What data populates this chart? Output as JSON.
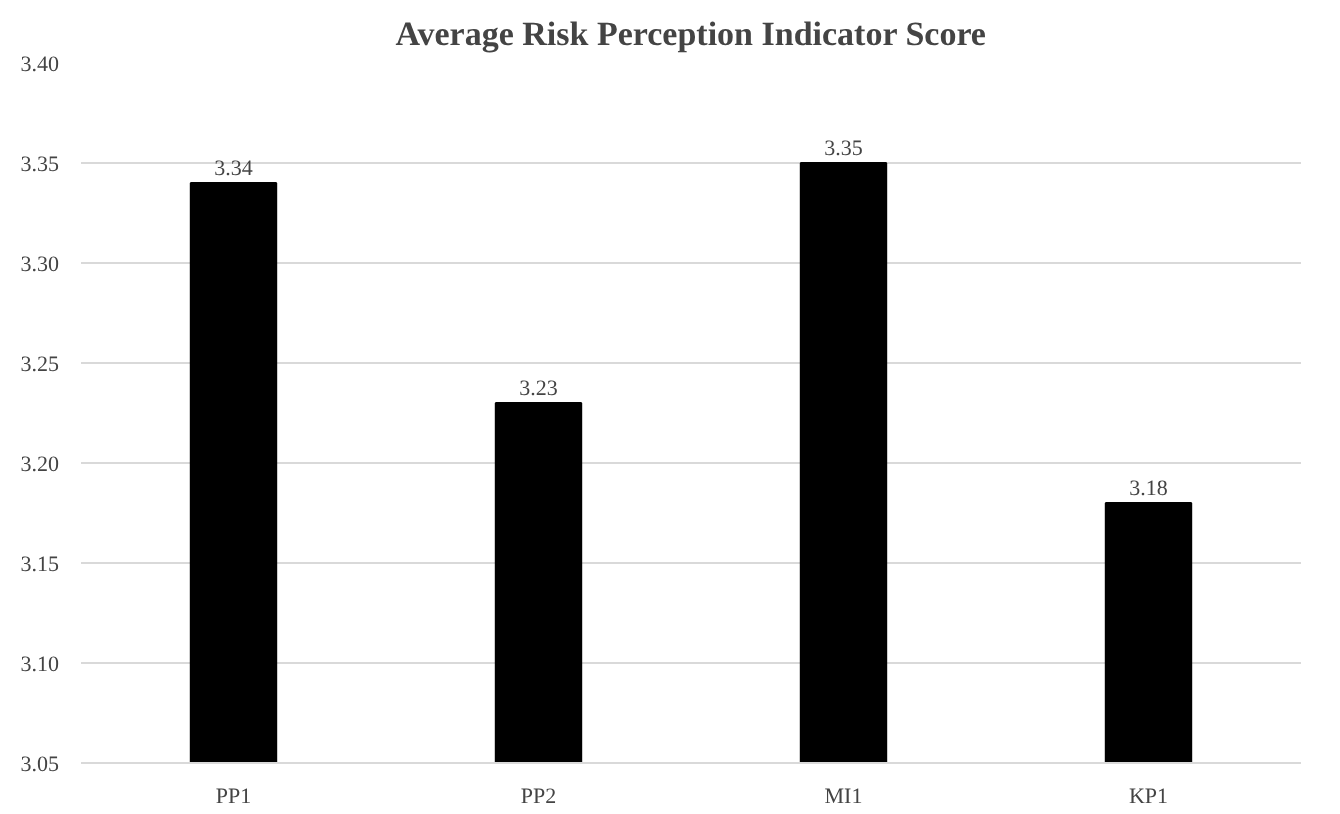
{
  "chart_data": {
    "type": "bar",
    "title": "Average Risk Perception Indicator Score",
    "categories": [
      "PP1",
      "PP2",
      "MI1",
      "KP1"
    ],
    "values": [
      3.34,
      3.23,
      3.35,
      3.18
    ],
    "color": "#000000",
    "ylim": [
      3.05,
      3.4
    ],
    "yticks": [
      3.05,
      {
        "value": 3.1,
        "label": "3.10"
      },
      3.15,
      {
        "value": 3.2,
        "label": "3.20"
      },
      3.25,
      {
        "value": 3.3,
        "label": "3.30"
      },
      3.35,
      {
        "value": 3.4,
        "label": "3.40"
      }
    ],
    "grid": "y",
    "data_labels": true
  }
}
